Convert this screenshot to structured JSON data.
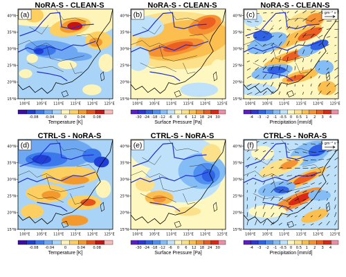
{
  "chart_data": [
    {
      "type": "heatmap",
      "panel": "(a)",
      "title": "NoRA-S - CLEAN-S",
      "variable": "Temperature [K]",
      "levels": [
        "-0.08",
        "-0.04",
        "0",
        "0.04",
        "0.08"
      ],
      "x_ticks": [
        "100°E",
        "105°E",
        "110°E",
        "115°E",
        "120°E",
        "125°E"
      ],
      "y_ticks": [
        "40°N",
        "35°N",
        "30°N",
        "25°N",
        "20°N",
        "15°N"
      ],
      "xlim": [
        98,
        126
      ],
      "ylim": [
        15,
        42
      ],
      "features": [
        {
          "lon": 115,
          "lat": 37,
          "value": 0.08
        },
        {
          "lon": 104,
          "lat": 29.5,
          "value": -0.06
        }
      ]
    },
    {
      "type": "heatmap",
      "panel": "(b)",
      "title": "NoRA-S - CLEAN-S",
      "variable": "Surface Pressure [Pa]",
      "levels": [
        "-30",
        "-24",
        "-18",
        "-12",
        "-6",
        "0",
        "6",
        "12",
        "18",
        "24",
        "30"
      ],
      "x_ticks": [
        "100°E",
        "105°E",
        "110°E",
        "115°E",
        "120°E",
        "125°E"
      ],
      "y_ticks": [
        "40°N",
        "35°N",
        "30°N",
        "25°N",
        "20°N",
        "15°N"
      ],
      "xlim": [
        98,
        126
      ],
      "ylim": [
        15,
        42
      ],
      "features": [
        {
          "lon": 112,
          "lat": 32,
          "value": 24
        },
        {
          "lon": 120,
          "lat": 38,
          "value": 24
        }
      ]
    },
    {
      "type": "heatmap",
      "panel": "(c)",
      "title": "NoRA-S - CLEAN-S",
      "variable": "Precipitation [mm/d]",
      "levels": [
        "-4",
        "-3",
        "-2",
        "-1",
        "-0.5",
        "0",
        "0.5",
        "1",
        "2",
        "3",
        "4"
      ],
      "reference_vector": "5 gm⁻² s⁻¹",
      "x_ticks": [
        "100°E",
        "105°E",
        "110°E",
        "115°E",
        "120°E",
        "125°E"
      ],
      "y_ticks": [
        "40°N",
        "35°N",
        "30°N",
        "25°N",
        "20°N",
        "15°N"
      ],
      "xlim": [
        98,
        126
      ],
      "ylim": [
        15,
        42
      ]
    },
    {
      "type": "heatmap",
      "panel": "(d)",
      "title": "CTRL-S - NoRA-S",
      "variable": "Temperature [K]",
      "levels": [
        "-0.08",
        "-0.04",
        "0",
        "0.04",
        "0.08"
      ],
      "x_ticks": [
        "100°E",
        "105°E",
        "110°E",
        "115°E",
        "120°E",
        "125°E"
      ],
      "y_ticks": [
        "40°N",
        "35°N",
        "30°N",
        "25°N",
        "20°N",
        "15°N"
      ],
      "xlim": [
        98,
        126
      ],
      "ylim": [
        15,
        42
      ],
      "features": [
        {
          "lon": 107,
          "lat": 36,
          "value": -0.08
        },
        {
          "lon": 112,
          "lat": 26,
          "value": 0.06
        }
      ]
    },
    {
      "type": "heatmap",
      "panel": "(e)",
      "title": "CTRL-S - NoRA-S",
      "variable": "Surface Pressure [Pa]",
      "levels": [
        "-30",
        "-24",
        "-18",
        "-12",
        "-6",
        "0",
        "6",
        "12",
        "18",
        "24",
        "30"
      ],
      "x_ticks": [
        "100°E",
        "105°E",
        "110°E",
        "115°E",
        "120°E",
        "125°E"
      ],
      "y_ticks": [
        "40°N",
        "35°N",
        "30°N",
        "25°N",
        "20°N",
        "15°N"
      ],
      "xlim": [
        98,
        126
      ],
      "ylim": [
        15,
        42
      ],
      "features": [
        {
          "lon": 119,
          "lat": 33,
          "value": -24
        },
        {
          "lon": 108,
          "lat": 26,
          "value": 12
        }
      ]
    },
    {
      "type": "heatmap",
      "panel": "(f)",
      "title": "CTRL-S - NoRA-S",
      "variable": "Precipitation [mm/d]",
      "levels": [
        "-4",
        "-3",
        "-2",
        "-1",
        "-0.5",
        "0",
        "0.5",
        "1",
        "2",
        "3",
        "4"
      ],
      "reference_vector": "5 gm⁻² s⁻¹",
      "x_ticks": [
        "100°E",
        "105°E",
        "110°E",
        "115°E",
        "120°E",
        "125°E"
      ],
      "y_ticks": [
        "40°N",
        "35°N",
        "30°N",
        "25°N",
        "20°N",
        "15°N"
      ],
      "xlim": [
        98,
        126
      ],
      "ylim": [
        15,
        42
      ]
    }
  ],
  "palettes": {
    "temperature": [
      "#3b0fa3",
      "#1f3fd6",
      "#3a78ec",
      "#6ea8f2",
      "#a9d4f7",
      "#fff4b8",
      "#fccf60",
      "#f39a2e",
      "#e6541e",
      "#c41414",
      "#f7b8b8"
    ],
    "pressure": [
      "#5a1fc0",
      "#2f36d4",
      "#2f62e4",
      "#4f8ff0",
      "#84bcf6",
      "#bfe2fa",
      "#fff7c0",
      "#fde08a",
      "#fbbf50",
      "#f59233",
      "#ec5f22",
      "#d92a17",
      "#ea8fa6"
    ],
    "precipitation": [
      "#5a1fc0",
      "#2f36d4",
      "#2f62e4",
      "#4f8ff0",
      "#84bcf6",
      "#bfe2fa",
      "#fff7c0",
      "#fde08a",
      "#fbbf50",
      "#f59233",
      "#ec5f22",
      "#d92a17",
      "#ea8fa6"
    ],
    "river_color": "#1f2fd0"
  }
}
